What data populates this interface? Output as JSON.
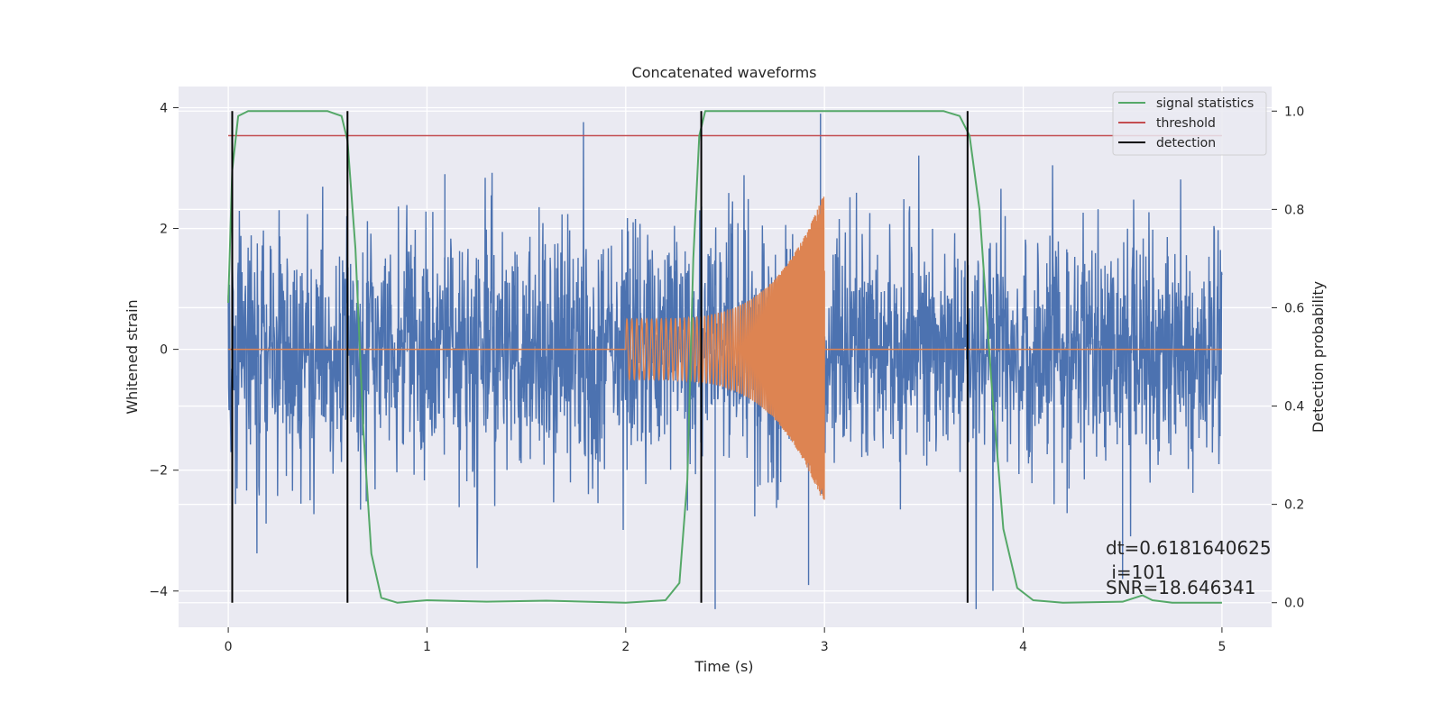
{
  "chart_data": {
    "type": "line",
    "title": "Concatenated waveforms",
    "xlabel": "Time (s)",
    "ylabel_left": "Whitened strain",
    "ylabel_right": "Detection probability",
    "xlim": [
      -0.25,
      5.25
    ],
    "ylim_left": [
      -4.6,
      4.35
    ],
    "ylim_right": [
      -0.05,
      1.05
    ],
    "xticks": [
      0,
      1,
      2,
      3,
      4,
      5
    ],
    "xtick_labels": [
      "0",
      "1",
      "2",
      "3",
      "4",
      "5"
    ],
    "yticks_left": [
      -4,
      -2,
      0,
      2,
      4
    ],
    "ytick_labels_left": [
      "−4",
      "−2",
      "0",
      "2",
      "4"
    ],
    "yticks_right": [
      0.0,
      0.2,
      0.4,
      0.6,
      0.8,
      1.0
    ],
    "ytick_labels_right": [
      "0.0",
      "0.2",
      "0.4",
      "0.6",
      "0.8",
      "1.0"
    ],
    "grid": true,
    "legend_position": "top-right",
    "colors": {
      "strain": "#4c72b0",
      "template": "#dd8452",
      "signal_statistics": "#55a868",
      "threshold": "#c44e52",
      "detection": "#000000",
      "background": "#eaeaf2",
      "grid": "#ffffff"
    },
    "series": [
      {
        "name": "signal statistics",
        "axis": "right",
        "x": [
          0.0,
          0.02,
          0.05,
          0.1,
          0.5,
          0.57,
          0.6,
          0.64,
          0.68,
          0.72,
          0.77,
          0.85,
          1.0,
          1.3,
          1.6,
          2.0,
          2.2,
          2.27,
          2.31,
          2.34,
          2.37,
          2.4,
          2.45,
          2.6,
          3.0,
          3.6,
          3.68,
          3.73,
          3.78,
          3.84,
          3.9,
          3.97,
          4.05,
          4.2,
          4.5,
          4.6,
          4.65,
          4.75,
          5.0
        ],
        "y": [
          0.61,
          0.88,
          0.99,
          1.0,
          1.0,
          0.99,
          0.94,
          0.72,
          0.35,
          0.1,
          0.01,
          0.0,
          0.005,
          0.002,
          0.004,
          0.0,
          0.005,
          0.04,
          0.25,
          0.7,
          0.95,
          1.0,
          1.0,
          1.0,
          1.0,
          1.0,
          0.99,
          0.95,
          0.8,
          0.45,
          0.15,
          0.03,
          0.005,
          0.0,
          0.002,
          0.015,
          0.005,
          0.0,
          0.0
        ]
      },
      {
        "name": "threshold",
        "axis": "right",
        "x": [
          0,
          5
        ],
        "y": [
          0.95,
          0.95
        ]
      },
      {
        "name": "detection",
        "axis": "right",
        "type": "vlines",
        "x": [
          0.02,
          0.6,
          2.38,
          3.72
        ],
        "ymin": 0.0,
        "ymax": 1.0
      }
    ],
    "strain": {
      "axis": "left",
      "x_range": [
        0,
        5
      ],
      "typical_amplitude": 2.3,
      "max_spike": 3.9,
      "min_spike": -4.3
    },
    "template": {
      "axis": "left",
      "x_range": [
        0,
        5
      ],
      "chirp_start": 2.0,
      "chirp_end": 3.0,
      "amp_start": 0.5,
      "amp_end": 2.6
    },
    "legend": [
      "signal statistics",
      "threshold",
      "detection"
    ],
    "annotations": {
      "dt": "dt=0.6181640625",
      "i": " i=101",
      "snr": "SNR=18.646341"
    }
  }
}
